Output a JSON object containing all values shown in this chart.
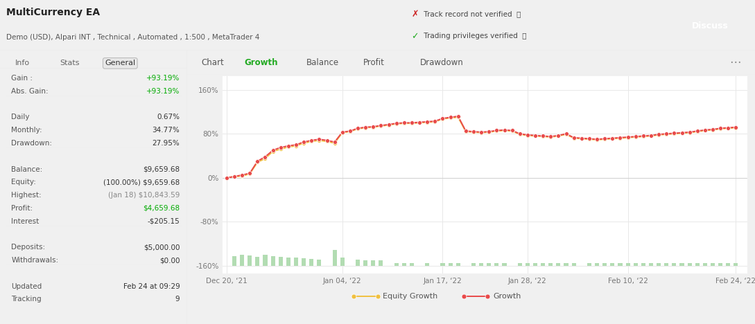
{
  "title": "MultiCurrency EA",
  "subtitle": "Demo (USD), Alpari INT , Technical , Automated , 1:500 , MetaTrader 4",
  "yticks": [
    -160,
    -80,
    0,
    80,
    160
  ],
  "ytick_labels": [
    "-160%",
    "-80%",
    "0%",
    "80%",
    "160%"
  ],
  "xtick_labels": [
    "Dec 20, ‘21",
    "Jan 04, ‘22",
    "Jan 17, ‘22",
    "Jan 28, ‘22",
    "Feb 10, ‘22",
    "Feb 24, ‘22"
  ],
  "xtick_positions": [
    0,
    15,
    28,
    39,
    52,
    66
  ],
  "growth_x": [
    0,
    1,
    2,
    3,
    4,
    5,
    6,
    7,
    8,
    9,
    10,
    11,
    12,
    13,
    14,
    15,
    16,
    17,
    18,
    19,
    20,
    21,
    22,
    23,
    24,
    25,
    26,
    27,
    28,
    29,
    30,
    31,
    32,
    33,
    34,
    35,
    36,
    37,
    38,
    39,
    40,
    41,
    42,
    43,
    44,
    45,
    46,
    47,
    48,
    49,
    50,
    51,
    52,
    53,
    54,
    55,
    56,
    57,
    58,
    59,
    60,
    61,
    62,
    63,
    64,
    65,
    66
  ],
  "growth_y": [
    0,
    2,
    5,
    8,
    30,
    38,
    50,
    55,
    58,
    60,
    65,
    68,
    70,
    68,
    65,
    83,
    85,
    90,
    92,
    93,
    95,
    97,
    99,
    100,
    100,
    101,
    102,
    103,
    108,
    110,
    112,
    85,
    84,
    83,
    84,
    86,
    87,
    86,
    80,
    78,
    77,
    76,
    75,
    77,
    80,
    73,
    72,
    71,
    70,
    71,
    72,
    73,
    74,
    75,
    76,
    77,
    79,
    80,
    81,
    82,
    83,
    85,
    87,
    88,
    90,
    91,
    92
  ],
  "equity_x": [
    0,
    1,
    2,
    3,
    4,
    5,
    6,
    7,
    8,
    9,
    10,
    11,
    12,
    13,
    14,
    15,
    16,
    17,
    18,
    19,
    20,
    21,
    22,
    23,
    24,
    25,
    26,
    27,
    28,
    29,
    30,
    31,
    32,
    33,
    34,
    35,
    36,
    37,
    38,
    39,
    40,
    41,
    42,
    43,
    44,
    45,
    46,
    47,
    48,
    49,
    50,
    51,
    52,
    53,
    54,
    55,
    56,
    57,
    58,
    59,
    60,
    61,
    62,
    63,
    64,
    65,
    66
  ],
  "equity_y": [
    0,
    2,
    3,
    7,
    28,
    35,
    48,
    52,
    56,
    58,
    63,
    66,
    68,
    66,
    63,
    82,
    84,
    89,
    91,
    92,
    94,
    96,
    98,
    99,
    99,
    100,
    101,
    102,
    107,
    109,
    110,
    84,
    83,
    82,
    83,
    85,
    86,
    85,
    79,
    77,
    76,
    75,
    74,
    76,
    79,
    72,
    71,
    70,
    69,
    70,
    71,
    72,
    73,
    74,
    75,
    76,
    78,
    79,
    80,
    81,
    82,
    84,
    86,
    87,
    89,
    90,
    91
  ],
  "growth_color": "#e84a4a",
  "equity_color": "#f0c040",
  "bar_x_early": [
    1,
    2,
    3,
    4,
    5,
    6,
    7,
    8,
    9,
    10,
    11,
    12,
    14,
    15
  ],
  "bar_h_early": [
    17,
    20,
    18,
    16,
    19,
    17,
    16,
    15,
    14,
    13,
    12,
    11,
    28,
    14
  ],
  "bar_x_mid": [
    17,
    18,
    19,
    20,
    22,
    23,
    24,
    26,
    28,
    29,
    30
  ],
  "bar_h_mid": [
    11,
    10,
    9,
    9,
    5,
    5,
    5,
    5,
    5,
    4,
    4
  ],
  "bar_x_late": [
    32,
    33,
    34,
    35,
    36,
    38,
    39,
    40,
    41,
    42,
    43,
    44,
    45,
    47,
    48,
    49,
    50,
    51,
    52,
    53,
    54,
    55,
    56,
    57,
    58,
    59,
    60,
    61,
    62,
    63,
    64,
    65,
    66
  ],
  "bar_h_late": [
    4,
    4,
    4,
    4,
    4,
    4,
    4,
    4,
    4,
    4,
    4,
    4,
    4,
    4,
    4,
    4,
    4,
    4,
    4,
    4,
    4,
    4,
    4,
    4,
    4,
    4,
    4,
    4,
    4,
    4,
    4,
    4,
    4
  ],
  "bar_color": "#b2dcb2",
  "legend_equity_color": "#f0c040",
  "legend_growth_color": "#e84a4a",
  "tab_labels": [
    "Chart",
    "Growth",
    "Balance",
    "Profit",
    "Drawdown"
  ],
  "active_tab": "Growth",
  "left_labels": [
    "Gain :",
    "Abs. Gain:",
    "",
    "Daily",
    "Monthly:",
    "Drawdown:",
    "",
    "Balance:",
    "Equity:",
    "Highest:",
    "Profit:",
    "Interest",
    "",
    "Deposits:",
    "Withdrawals:",
    "",
    "Updated",
    "Tracking"
  ],
  "left_values": [
    "+93.19%",
    "+93.19%",
    "",
    "0.67%",
    "34.77%",
    "27.95%",
    "",
    "$9,659.68",
    "(100.00%) $9,659.68",
    "(Jan 18) $10,843.59",
    "$4,659.68",
    "-$205.15",
    "",
    "$5,000.00",
    "$0.00",
    "",
    "Feb 24 at 09:29",
    "9"
  ],
  "left_value_colors": [
    "#00aa00",
    "#00aa00",
    "",
    "#333333",
    "#333333",
    "#333333",
    "",
    "#333333",
    "#333333",
    "#888888",
    "#00aa00",
    "#333333",
    "",
    "#333333",
    "#333333",
    "",
    "#333333",
    "#333333"
  ]
}
